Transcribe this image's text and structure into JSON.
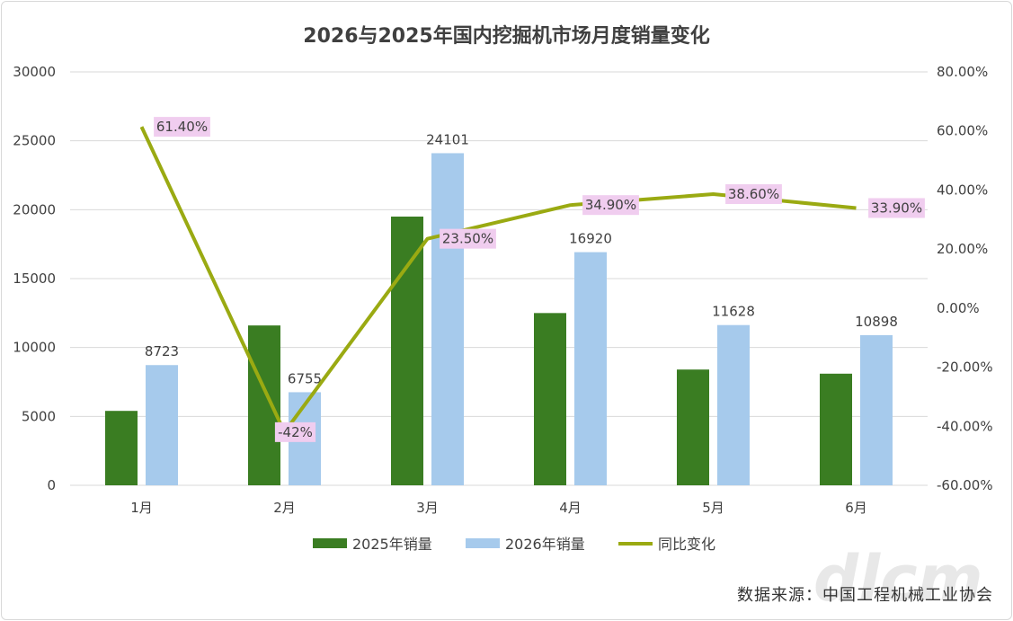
{
  "chart_data": {
    "type": "bar",
    "title": "2026与2025年国内挖掘机市场月度销量变化",
    "categories": [
      "1月",
      "2月",
      "3月",
      "4月",
      "5月",
      "6月"
    ],
    "series": [
      {
        "name": "2025年销量",
        "type": "bar",
        "axis": "left",
        "color": "#3a7d22",
        "values": [
          5400,
          11600,
          19500,
          12500,
          8400,
          8100
        ]
      },
      {
        "name": "2026年销量",
        "type": "bar",
        "axis": "left",
        "color": "#a6caec",
        "values": [
          8723,
          6755,
          24101,
          16920,
          11628,
          10898
        ],
        "data_labels": [
          "8723",
          "6755",
          "24101",
          "16920",
          "11628",
          "10898"
        ]
      },
      {
        "name": "同比变化",
        "type": "line",
        "axis": "right",
        "color": "#9aaa12",
        "values": [
          61.4,
          -42,
          23.5,
          34.9,
          38.6,
          33.9
        ],
        "data_labels": [
          "61.40%",
          "-42%",
          "23.50%",
          "34.90%",
          "38.60%",
          "33.90%"
        ]
      }
    ],
    "ylim_left": [
      0,
      30000
    ],
    "ylim_right": [
      -60,
      80
    ],
    "left_ticks": [
      "0",
      "5000",
      "10000",
      "15000",
      "20000",
      "25000",
      "30000"
    ],
    "right_ticks": [
      "-60.00%",
      "-40.00%",
      "-20.00%",
      "0.00%",
      "20.00%",
      "40.00%",
      "60.00%",
      "80.00%"
    ],
    "grid": true,
    "legend_position": "bottom",
    "label_bg": "#f0cdef"
  },
  "source_text": "数据来源：中国工程机械工业协会"
}
